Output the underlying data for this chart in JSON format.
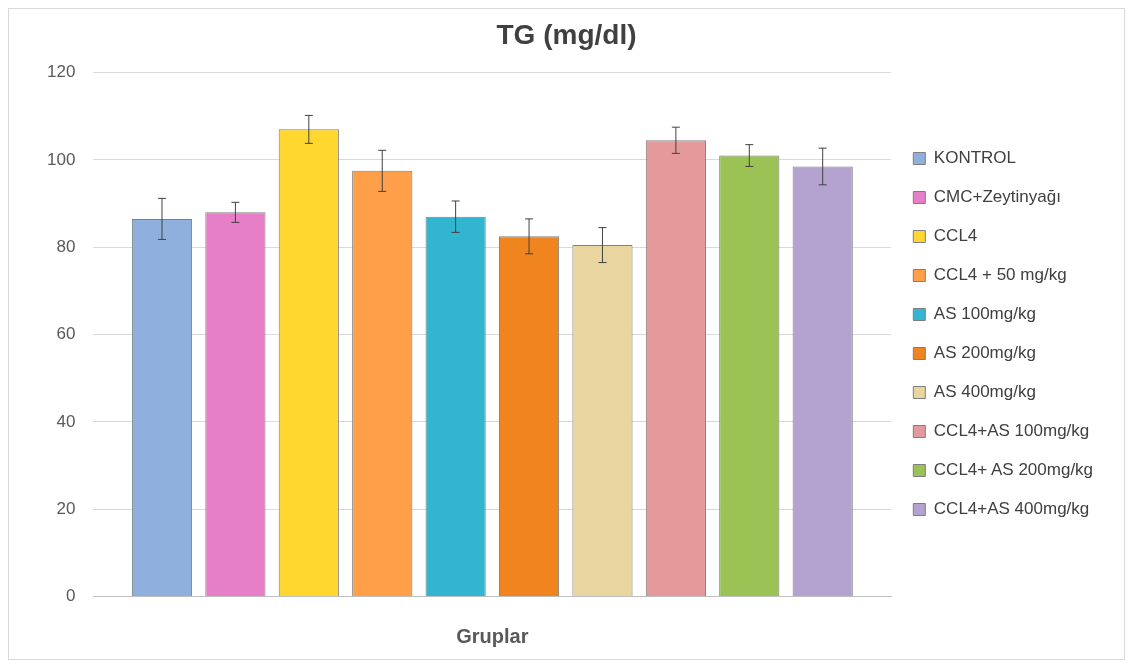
{
  "chart_data": {
    "type": "bar",
    "title": "TG (mg/dl)",
    "xlabel": "Gruplar",
    "categories": [
      null
    ],
    "series": [
      {
        "name": "KONTROL",
        "color": "#8fb0dc",
        "values": [
          86.5
        ],
        "errors": [
          4.7
        ]
      },
      {
        "name": "CMC+Zeytinyağı",
        "color": "#e77fc8",
        "values": [
          88
        ],
        "errors": [
          2.3
        ]
      },
      {
        "name": "CCL4",
        "color": "#ffd72e",
        "values": [
          107
        ],
        "errors": [
          3.2
        ]
      },
      {
        "name": "CCL4 + 50 mg/kg",
        "color": "#ff9f4a",
        "values": [
          97.5
        ],
        "errors": [
          4.7
        ]
      },
      {
        "name": "AS 100mg/kg",
        "color": "#31b5d0",
        "values": [
          87
        ],
        "errors": [
          3.6
        ]
      },
      {
        "name": "AS 200mg/kg",
        "color": "#f0841f",
        "values": [
          82.5
        ],
        "errors": [
          4
        ]
      },
      {
        "name": "AS 400mg/kg",
        "color": "#e8d5a0",
        "values": [
          80.5
        ],
        "errors": [
          4
        ]
      },
      {
        "name": "CCL4+AS 100mg/kg",
        "color": "#e49a9a",
        "values": [
          104.5
        ],
        "errors": [
          3
        ]
      },
      {
        "name": "CCL4+ AS 200mg/kg",
        "color": "#9bc255",
        "values": [
          101
        ],
        "errors": [
          2.5
        ]
      },
      {
        "name": "CCL4+AS 400mg/kg",
        "color": "#b4a3d1",
        "values": [
          98.5
        ],
        "errors": [
          4.2
        ]
      }
    ],
    "ylim": [
      0,
      120
    ],
    "yticks": [
      0,
      20,
      40,
      60,
      80,
      100,
      120
    ],
    "grid": "y",
    "legend": "right"
  }
}
